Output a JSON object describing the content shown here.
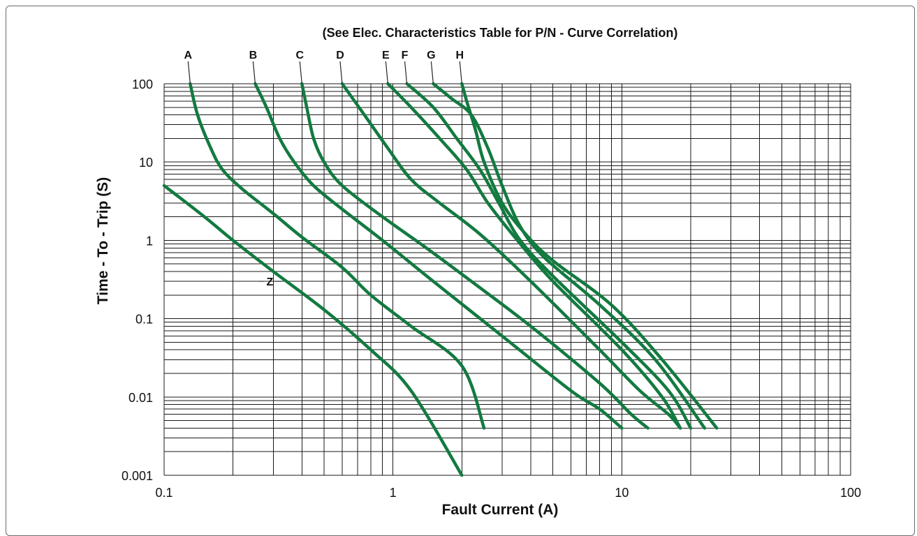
{
  "chart_data": {
    "type": "line",
    "title": "(See Elec. Characteristics Table for P/N - Curve Correlation)",
    "xlabel": "Fault Current (A)",
    "ylabel": "Time - To - Trip (S)",
    "xscale": "log",
    "yscale": "log",
    "xlim": [
      0.1,
      100
    ],
    "ylim": [
      0.001,
      100
    ],
    "grid": true,
    "line_color": "#137a40",
    "x_ticks": [
      "0.1",
      "1",
      "10",
      "100"
    ],
    "y_ticks": [
      "0.001",
      "0.01",
      "0.1",
      "1",
      "10",
      "100"
    ],
    "series": [
      {
        "name": "A",
        "points": [
          [
            0.13,
            100
          ],
          [
            0.14,
            40
          ],
          [
            0.16,
            15
          ],
          [
            0.18,
            8
          ],
          [
            0.22,
            4.5
          ],
          [
            0.3,
            2.2
          ],
          [
            0.4,
            1.1
          ],
          [
            0.6,
            0.45
          ],
          [
            0.8,
            0.2
          ],
          [
            1.2,
            0.08
          ],
          [
            2.0,
            0.025
          ],
          [
            2.5,
            0.004
          ]
        ]
      },
      {
        "name": "B",
        "points": [
          [
            0.25,
            100
          ],
          [
            0.28,
            50
          ],
          [
            0.32,
            20
          ],
          [
            0.37,
            10
          ],
          [
            0.45,
            5
          ],
          [
            0.6,
            2.5
          ],
          [
            0.9,
            1.0
          ],
          [
            1.5,
            0.3
          ],
          [
            3,
            0.06
          ],
          [
            6,
            0.012
          ],
          [
            8,
            0.007
          ],
          [
            10,
            0.004
          ]
        ]
      },
      {
        "name": "C",
        "points": [
          [
            0.4,
            100
          ],
          [
            0.42,
            50
          ],
          [
            0.45,
            20
          ],
          [
            0.5,
            10
          ],
          [
            0.6,
            5
          ],
          [
            0.9,
            2.0
          ],
          [
            1.4,
            0.8
          ],
          [
            2.2,
            0.3
          ],
          [
            4,
            0.08
          ],
          [
            8,
            0.015
          ],
          [
            11,
            0.006
          ],
          [
            13,
            0.004
          ]
        ]
      },
      {
        "name": "D",
        "points": [
          [
            0.6,
            100
          ],
          [
            0.75,
            40
          ],
          [
            0.95,
            15
          ],
          [
            1.2,
            6
          ],
          [
            1.6,
            3
          ],
          [
            2.4,
            1.2
          ],
          [
            4,
            0.3
          ],
          [
            8,
            0.04
          ],
          [
            12,
            0.012
          ],
          [
            16,
            0.006
          ],
          [
            18,
            0.004
          ]
        ]
      },
      {
        "name": "E",
        "points": [
          [
            0.95,
            100
          ],
          [
            1.2,
            50
          ],
          [
            1.6,
            20
          ],
          [
            2.1,
            8
          ],
          [
            2.6,
            3
          ],
          [
            3.5,
            1.0
          ],
          [
            5,
            0.3
          ],
          [
            10,
            0.04
          ],
          [
            15,
            0.01
          ],
          [
            18,
            0.004
          ]
        ]
      },
      {
        "name": "F",
        "points": [
          [
            1.15,
            100
          ],
          [
            1.5,
            50
          ],
          [
            1.9,
            20
          ],
          [
            2.4,
            8
          ],
          [
            2.9,
            3
          ],
          [
            3.6,
            1.0
          ],
          [
            5,
            0.35
          ],
          [
            10,
            0.05
          ],
          [
            16,
            0.012
          ],
          [
            20,
            0.004
          ]
        ]
      },
      {
        "name": "G",
        "points": [
          [
            1.5,
            100
          ],
          [
            1.8,
            65
          ],
          [
            2.2,
            40
          ],
          [
            2.6,
            15
          ],
          [
            3,
            5
          ],
          [
            3.6,
            1.5
          ],
          [
            4.6,
            0.6
          ],
          [
            8,
            0.15
          ],
          [
            14,
            0.03
          ],
          [
            23,
            0.004
          ]
        ]
      },
      {
        "name": "H",
        "points": [
          [
            2.0,
            100
          ],
          [
            2.1,
            60
          ],
          [
            2.3,
            25
          ],
          [
            2.5,
            10
          ],
          [
            3,
            3
          ],
          [
            3.8,
            1.2
          ],
          [
            5,
            0.55
          ],
          [
            9,
            0.15
          ],
          [
            15,
            0.03
          ],
          [
            26,
            0.004
          ]
        ]
      },
      {
        "name": "Z",
        "points": [
          [
            0.1,
            5
          ],
          [
            0.15,
            2
          ],
          [
            0.2,
            1
          ],
          [
            0.3,
            0.4
          ],
          [
            0.5,
            0.13
          ],
          [
            0.8,
            0.04
          ],
          [
            1.2,
            0.012
          ],
          [
            2.0,
            0.001
          ]
        ]
      }
    ],
    "curve_labels": [
      {
        "name": "A",
        "x": 0.13
      },
      {
        "name": "B",
        "x": 0.25
      },
      {
        "name": "C",
        "x": 0.4
      },
      {
        "name": "D",
        "x": 0.6
      },
      {
        "name": "E",
        "x": 0.95
      },
      {
        "name": "F",
        "x": 1.15
      },
      {
        "name": "G",
        "x": 1.5
      },
      {
        "name": "H",
        "x": 2.0
      }
    ],
    "z_label": {
      "name": "Z",
      "x": 0.3,
      "y": 0.3
    }
  }
}
